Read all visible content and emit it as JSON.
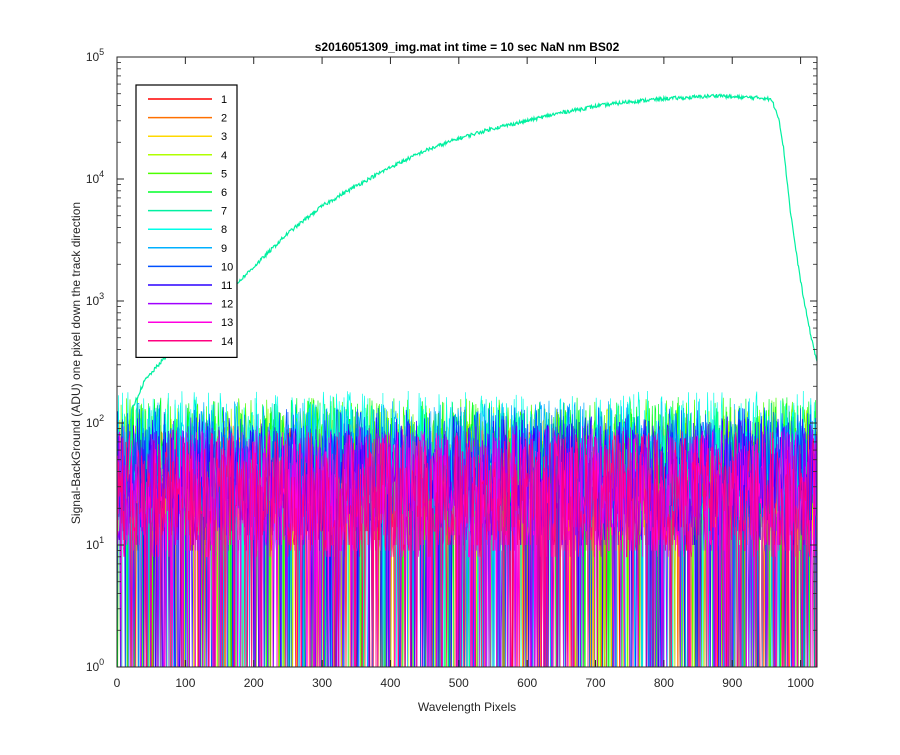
{
  "chart_data": {
    "type": "line",
    "title": "s2016051309_img.mat int time = 10 sec  NaN nm BS02",
    "xlabel": "Wavelength Pixels",
    "ylabel": "Signal-BackGround (ADU) one pixel down the track direction",
    "x_range": [
      0,
      1024
    ],
    "y_range": [
      1,
      100000
    ],
    "y_scale": "log",
    "x_ticks": [
      0,
      100,
      200,
      300,
      400,
      500,
      600,
      700,
      800,
      900,
      1000
    ],
    "x_tick_labels": [
      "0",
      "100",
      "200",
      "300",
      "400",
      "500",
      "600",
      "700",
      "800",
      "900",
      "1000"
    ],
    "y_ticks": [
      1,
      10,
      100,
      1000,
      10000,
      100000
    ],
    "y_tick_labels": [
      {
        "base": "10",
        "exp": "0"
      },
      {
        "base": "10",
        "exp": "1"
      },
      {
        "base": "10",
        "exp": "2"
      },
      {
        "base": "10",
        "exp": "3"
      },
      {
        "base": "10",
        "exp": "4"
      },
      {
        "base": "10",
        "exp": "5"
      }
    ],
    "grid": false,
    "legend_position": "top-left",
    "series": [
      {
        "name": "1",
        "color": "#ff0000",
        "kind": "noise",
        "level": 20
      },
      {
        "name": "2",
        "color": "#ff7000",
        "kind": "noise",
        "level": 20
      },
      {
        "name": "3",
        "color": "#ffd800",
        "kind": "noise",
        "level": 22
      },
      {
        "name": "4",
        "color": "#b0ff00",
        "kind": "noise",
        "level": 28
      },
      {
        "name": "5",
        "color": "#4cff00",
        "kind": "noise",
        "level": 34
      },
      {
        "name": "6",
        "color": "#00ff28",
        "kind": "noise",
        "level": 34
      },
      {
        "name": "7",
        "color": "#00f0a0",
        "kind": "signal",
        "points": [
          [
            18,
            40
          ],
          [
            22,
            130
          ],
          [
            40,
            220
          ],
          [
            80,
            400
          ],
          [
            120,
            700
          ],
          [
            160,
            1150
          ],
          [
            200,
            1900
          ],
          [
            250,
            3600
          ],
          [
            300,
            6000
          ],
          [
            350,
            8800
          ],
          [
            400,
            12500
          ],
          [
            450,
            17000
          ],
          [
            500,
            21500
          ],
          [
            550,
            26000
          ],
          [
            600,
            30000
          ],
          [
            650,
            35000
          ],
          [
            700,
            39500
          ],
          [
            750,
            43000
          ],
          [
            800,
            45500
          ],
          [
            850,
            47000
          ],
          [
            880,
            48500
          ],
          [
            900,
            47000
          ],
          [
            930,
            46500
          ],
          [
            950,
            46000
          ],
          [
            958,
            44000
          ],
          [
            968,
            32000
          ],
          [
            975,
            18000
          ],
          [
            985,
            5500
          ],
          [
            995,
            2200
          ],
          [
            1005,
            1000
          ],
          [
            1015,
            520
          ],
          [
            1024,
            320
          ]
        ]
      },
      {
        "name": "8",
        "color": "#00ffe8",
        "kind": "noise",
        "level": 38
      },
      {
        "name": "9",
        "color": "#00b0ff",
        "kind": "noise",
        "level": 32
      },
      {
        "name": "10",
        "color": "#0050ff",
        "kind": "noise",
        "level": 28
      },
      {
        "name": "11",
        "color": "#2c00ff",
        "kind": "noise",
        "level": 24
      },
      {
        "name": "12",
        "color": "#a000ff",
        "kind": "noise",
        "level": 20
      },
      {
        "name": "13",
        "color": "#ff00e0",
        "kind": "noise",
        "level": 18
      },
      {
        "name": "14",
        "color": "#ff0080",
        "kind": "noise",
        "level": 18
      }
    ]
  }
}
